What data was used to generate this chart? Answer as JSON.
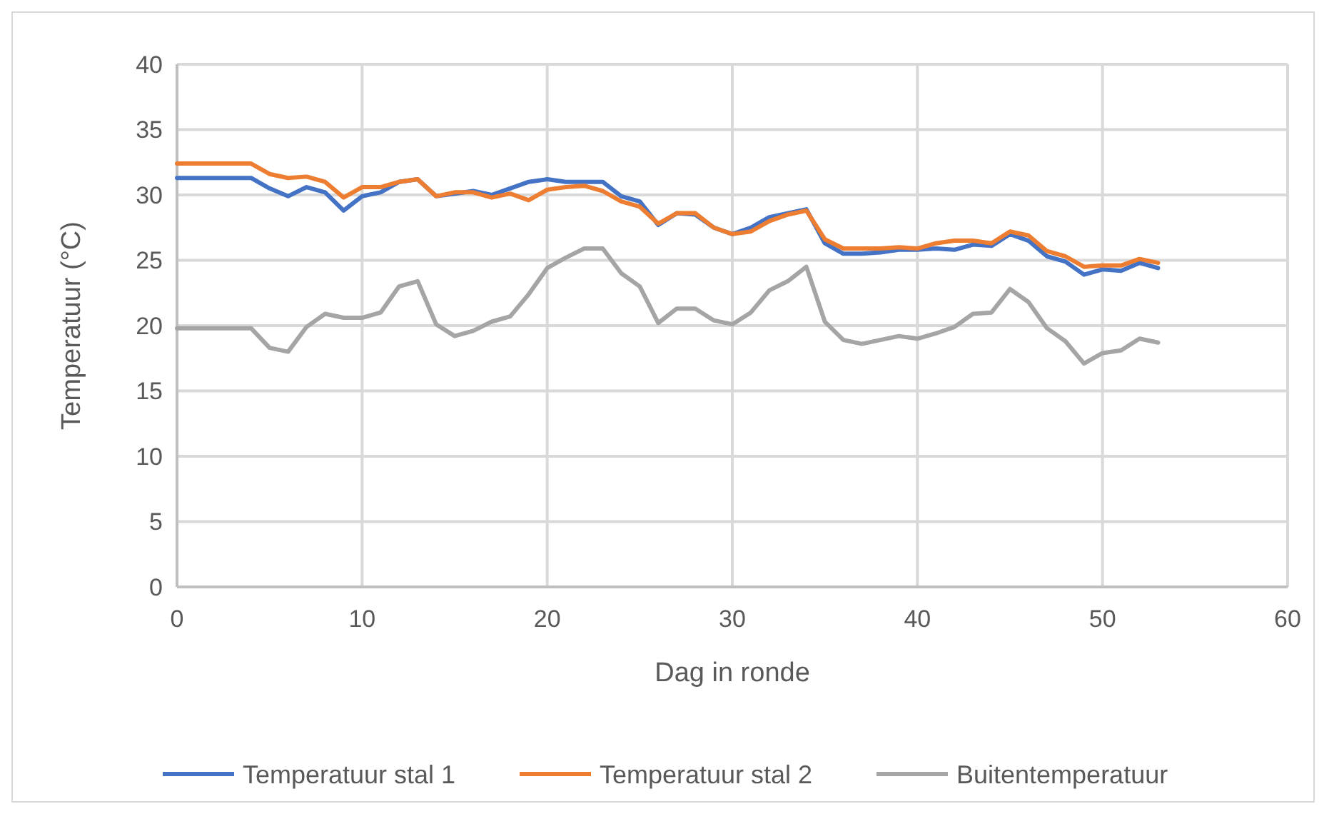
{
  "chart_data": {
    "type": "line",
    "xlabel": "Dag in ronde",
    "ylabel": "Temperatuur (°C)",
    "x": [
      0,
      1,
      2,
      3,
      4,
      5,
      6,
      7,
      8,
      9,
      10,
      11,
      12,
      13,
      14,
      15,
      16,
      17,
      18,
      19,
      20,
      21,
      22,
      23,
      24,
      25,
      26,
      27,
      28,
      29,
      30,
      31,
      32,
      33,
      34,
      35,
      36,
      37,
      38,
      39,
      40,
      41,
      42,
      43,
      44,
      45,
      46,
      47,
      48,
      49,
      50,
      51,
      52,
      53
    ],
    "xlim": [
      0,
      60
    ],
    "xticks": [
      0,
      10,
      20,
      30,
      40,
      50,
      60
    ],
    "ylim": [
      0,
      40
    ],
    "yticks": [
      0,
      5,
      10,
      15,
      20,
      25,
      30,
      35,
      40
    ],
    "grid": true,
    "legend": "bottom",
    "marker": "none",
    "line_style": "solid",
    "series": [
      {
        "name": "Temperatuur stal 1",
        "color": "#4472c4",
        "values": [
          31.3,
          31.3,
          31.3,
          31.3,
          31.3,
          30.5,
          29.9,
          30.6,
          30.2,
          28.8,
          29.9,
          30.2,
          31.0,
          31.2,
          29.9,
          30.1,
          30.3,
          30.0,
          30.5,
          31.0,
          31.2,
          31.0,
          31.0,
          31.0,
          29.9,
          29.5,
          27.7,
          28.6,
          28.5,
          27.5,
          27.0,
          27.5,
          28.3,
          28.6,
          28.9,
          26.3,
          25.5,
          25.5,
          25.6,
          25.8,
          25.8,
          25.9,
          25.8,
          26.2,
          26.1,
          27.0,
          26.5,
          25.3,
          24.9,
          23.9,
          24.3,
          24.2,
          24.8,
          24.4
        ]
      },
      {
        "name": "Temperatuur stal 2",
        "color": "#ed7d31",
        "values": [
          32.4,
          32.4,
          32.4,
          32.4,
          32.4,
          31.6,
          31.3,
          31.4,
          31.0,
          29.8,
          30.6,
          30.6,
          31.0,
          31.2,
          29.9,
          30.2,
          30.2,
          29.8,
          30.1,
          29.6,
          30.4,
          30.6,
          30.7,
          30.3,
          29.5,
          29.1,
          27.8,
          28.6,
          28.6,
          27.5,
          27.0,
          27.2,
          28.0,
          28.5,
          28.8,
          26.6,
          25.9,
          25.9,
          25.9,
          26.0,
          25.9,
          26.3,
          26.5,
          26.5,
          26.3,
          27.2,
          26.9,
          25.7,
          25.3,
          24.5,
          24.6,
          24.6,
          25.1,
          24.8
        ]
      },
      {
        "name": "Buitentemperatuur",
        "color": "#a5a5a5",
        "values": [
          19.8,
          19.8,
          19.8,
          19.8,
          19.8,
          18.3,
          18.0,
          19.9,
          20.9,
          20.6,
          20.6,
          21.0,
          23.0,
          23.4,
          20.1,
          19.2,
          19.6,
          20.3,
          20.7,
          22.4,
          24.4,
          25.2,
          25.9,
          25.9,
          24.0,
          23.0,
          20.2,
          21.3,
          21.3,
          20.4,
          20.1,
          21.0,
          22.7,
          23.4,
          24.5,
          20.3,
          18.9,
          18.6,
          18.9,
          19.2,
          19.0,
          19.4,
          19.9,
          20.9,
          21.0,
          22.8,
          21.8,
          19.8,
          18.8,
          17.1,
          17.9,
          18.1,
          19.0,
          18.7
        ]
      }
    ]
  }
}
